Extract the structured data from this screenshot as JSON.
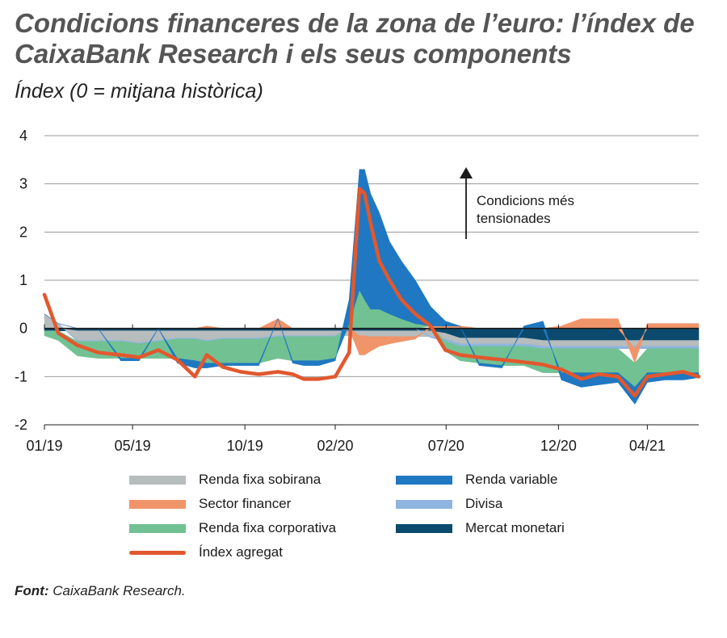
{
  "title": "Condicions financeres de la zona de l’euro: l’índex de CaixaBank Research i els seus components",
  "subtitle": "Índex (0 = mitjana històrica)",
  "source": {
    "label": "Font:",
    "text": "CaixaBank Research."
  },
  "annotation": {
    "line1": "Condicions més",
    "line2": "tensionades"
  },
  "colors": {
    "renda_fixa_sobirana": "#b7bcbd",
    "sector_financer": "#f0946a",
    "renda_fixa_corporativa": "#72c193",
    "renda_variable": "#1f78c1",
    "divisa": "#8fb5de",
    "mercat_monetari": "#0b4a6e",
    "index_agregat": "#e2582e",
    "grid": "#9a9a9a"
  },
  "legend": [
    {
      "key": "renda_fixa_sobirana",
      "label": "Renda fixa sobirana",
      "kind": "band"
    },
    {
      "key": "renda_variable",
      "label": "Renda variable",
      "kind": "band"
    },
    {
      "key": "sector_financer",
      "label": "Sector financer",
      "kind": "band"
    },
    {
      "key": "divisa",
      "label": "Divisa",
      "kind": "band"
    },
    {
      "key": "renda_fixa_corporativa",
      "label": "Renda fixa corporativa",
      "kind": "band"
    },
    {
      "key": "mercat_monetari",
      "label": "Mercat monetari",
      "kind": "band"
    },
    {
      "key": "index_agregat",
      "label": "Índex agregat",
      "kind": "line"
    }
  ],
  "chart_data": {
    "type": "area",
    "stacked": true,
    "x_ticks": [
      "01/19",
      "05/19",
      "10/19",
      "02/20",
      "07/20",
      "12/20",
      "04/21"
    ],
    "y_ticks": [
      4,
      3,
      2,
      1,
      0,
      -1,
      -2
    ],
    "ylim": [
      -2,
      4
    ],
    "grid": true,
    "x": [
      "2019-01-01",
      "2019-01-20",
      "2019-02-15",
      "2019-03-15",
      "2019-04-15",
      "2019-05-10",
      "2019-06-05",
      "2019-07-01",
      "2019-07-25",
      "2019-08-10",
      "2019-09-01",
      "2019-09-25",
      "2019-10-20",
      "2019-11-15",
      "2019-12-05",
      "2019-12-20",
      "2020-01-10",
      "2020-02-01",
      "2020-02-20",
      "2020-03-05",
      "2020-03-12",
      "2020-03-20",
      "2020-04-01",
      "2020-04-15",
      "2020-05-01",
      "2020-05-20",
      "2020-06-10",
      "2020-06-30",
      "2020-07-20",
      "2020-08-15",
      "2020-09-15",
      "2020-10-15",
      "2020-11-10",
      "2020-12-05",
      "2021-01-01",
      "2021-01-25",
      "2021-02-20",
      "2021-03-15",
      "2021-04-01",
      "2021-04-25",
      "2021-05-20",
      "2021-06-10"
    ],
    "series": [
      {
        "name": "Renda fixa sobirana",
        "key": "renda_fixa_sobirana",
        "values": [
          0.3,
          0.1,
          -0.2,
          -0.2,
          -0.2,
          -0.25,
          -0.2,
          -0.15,
          -0.15,
          -0.2,
          -0.15,
          -0.15,
          -0.15,
          -0.1,
          -0.1,
          -0.1,
          -0.1,
          -0.1,
          -0.1,
          -0.1,
          -0.1,
          -0.12,
          -0.12,
          -0.12,
          -0.12,
          -0.12,
          -0.12,
          -0.12,
          -0.12,
          -0.12,
          -0.12,
          -0.12,
          -0.12,
          -0.12,
          -0.12,
          -0.12,
          -0.12,
          -0.12,
          -0.12,
          -0.12,
          -0.12,
          -0.12
        ]
      },
      {
        "name": "Sector financer",
        "key": "sector_financer",
        "values": [
          0,
          0,
          0,
          0,
          0,
          0,
          0,
          0,
          0,
          0.05,
          0,
          0,
          0,
          0.2,
          0,
          0,
          0,
          0,
          0,
          -0.4,
          -0.4,
          -0.3,
          -0.2,
          -0.15,
          -0.1,
          -0.05,
          0.05,
          0.05,
          0.05,
          0,
          0,
          0,
          0,
          0.05,
          0.2,
          0.2,
          0.2,
          -0.3,
          0.1,
          0.1,
          0.1,
          0.1
        ]
      },
      {
        "name": "Renda fixa corporativa",
        "key": "renda_fixa_corporativa",
        "values": [
          -0.1,
          -0.2,
          -0.3,
          -0.35,
          -0.35,
          -0.3,
          -0.35,
          -0.4,
          -0.45,
          -0.45,
          -0.5,
          -0.5,
          -0.5,
          -0.45,
          -0.5,
          -0.5,
          -0.5,
          -0.45,
          0.1,
          0.8,
          0.6,
          0.4,
          0.4,
          0.3,
          0.2,
          0.1,
          0,
          -0.2,
          -0.3,
          -0.35,
          -0.4,
          -0.4,
          -0.5,
          -0.5,
          -0.5,
          -0.5,
          -0.5,
          -0.5,
          -0.5,
          -0.5,
          -0.5,
          -0.5
        ]
      },
      {
        "name": "Renda variable",
        "key": "renda_variable",
        "values": [
          0,
          0,
          0,
          0,
          -0.05,
          -0.05,
          0,
          -0.1,
          -0.15,
          -0.1,
          -0.05,
          -0.05,
          -0.05,
          0,
          -0.05,
          -0.1,
          -0.1,
          -0.05,
          0.5,
          2.5,
          2.7,
          2.4,
          2.0,
          1.5,
          1.2,
          0.9,
          0.4,
          0.1,
          0,
          -0.05,
          -0.05,
          0.05,
          0.15,
          -0.15,
          -0.3,
          -0.25,
          -0.2,
          -0.35,
          -0.2,
          -0.15,
          -0.15,
          -0.1
        ]
      },
      {
        "name": "Divisa",
        "key": "divisa",
        "values": [
          0,
          0,
          -0.02,
          -0.02,
          -0.02,
          -0.02,
          -0.02,
          -0.02,
          -0.02,
          -0.02,
          -0.02,
          -0.02,
          -0.02,
          -0.02,
          -0.02,
          -0.02,
          -0.02,
          -0.02,
          0,
          0,
          0,
          0,
          0,
          0,
          0,
          0,
          -0.02,
          -0.05,
          -0.05,
          -0.05,
          -0.05,
          -0.05,
          -0.05,
          -0.05,
          -0.05,
          -0.05,
          -0.05,
          -0.05,
          -0.05,
          -0.05,
          -0.05,
          -0.05
        ]
      },
      {
        "name": "Mercat monetari",
        "key": "mercat_monetari",
        "values": [
          -0.05,
          -0.05,
          -0.05,
          -0.05,
          -0.05,
          -0.05,
          -0.05,
          -0.05,
          -0.05,
          -0.05,
          -0.05,
          -0.05,
          -0.05,
          -0.05,
          -0.05,
          -0.05,
          -0.05,
          -0.05,
          -0.05,
          -0.05,
          -0.05,
          -0.05,
          -0.05,
          -0.05,
          -0.05,
          -0.05,
          -0.05,
          -0.1,
          -0.2,
          -0.2,
          -0.2,
          -0.2,
          -0.25,
          -0.25,
          -0.25,
          -0.25,
          -0.25,
          -0.25,
          -0.25,
          -0.25,
          -0.25,
          -0.25
        ]
      },
      {
        "name": "Índex agregat",
        "key": "index_agregat",
        "kind": "line",
        "values": [
          0.7,
          -0.1,
          -0.35,
          -0.5,
          -0.55,
          -0.6,
          -0.45,
          -0.65,
          -1.0,
          -0.55,
          -0.8,
          -0.9,
          -0.95,
          -0.9,
          -0.95,
          -1.05,
          -1.05,
          -1.0,
          -0.5,
          2.9,
          2.8,
          2.2,
          1.4,
          1.0,
          0.6,
          0.3,
          0.05,
          -0.45,
          -0.55,
          -0.6,
          -0.65,
          -0.7,
          -0.75,
          -0.85,
          -1.05,
          -0.95,
          -1.0,
          -1.4,
          -1.0,
          -0.95,
          -0.9,
          -1.0
        ]
      }
    ]
  }
}
